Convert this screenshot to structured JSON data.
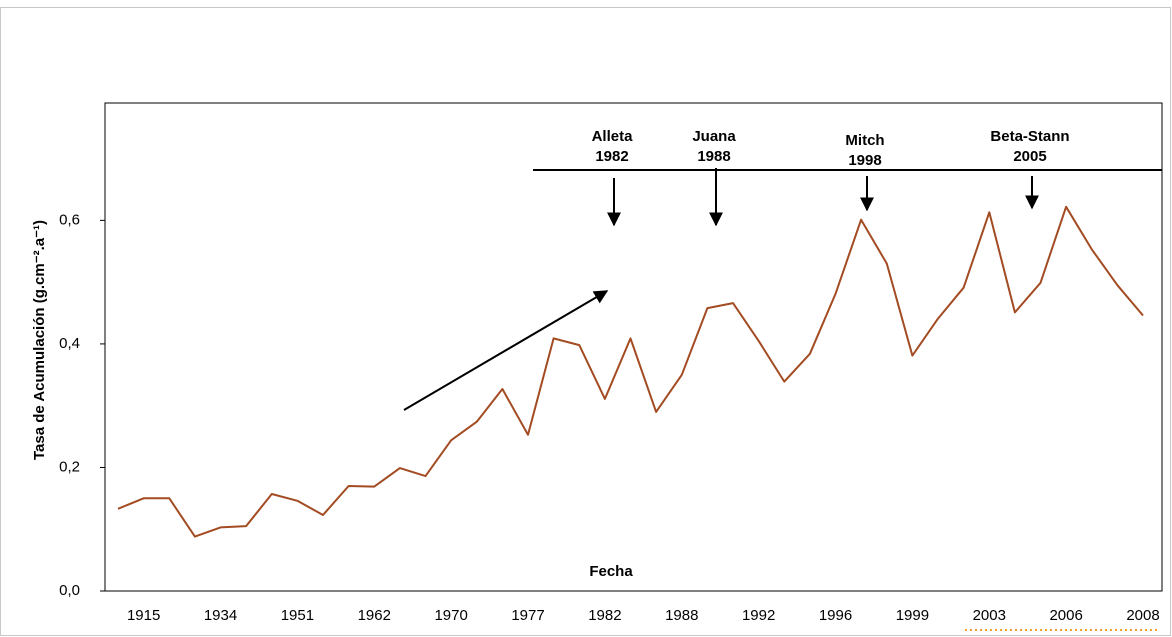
{
  "chart_data": {
    "type": "line",
    "x_label": "Fecha",
    "y_label": "Tasa de Acumulación (g.cm⁻².a⁻¹)",
    "categories": [
      null,
      "1915",
      null,
      null,
      "1934",
      null,
      null,
      "1951",
      null,
      null,
      "1962",
      null,
      null,
      "1970",
      null,
      null,
      "1977",
      null,
      null,
      "1982",
      null,
      null,
      "1988",
      null,
      null,
      "1992",
      null,
      null,
      "1996",
      null,
      null,
      "1999",
      null,
      null,
      "2003",
      null,
      null,
      "2006",
      null,
      null,
      "2008"
    ],
    "series": [
      {
        "color": "#a34b22",
        "values": [
          0.133,
          0.15,
          0.15,
          0.088,
          0.103,
          0.105,
          0.157,
          0.146,
          0.123,
          0.17,
          0.169,
          0.199,
          0.186,
          0.244,
          0.274,
          0.327,
          0.253,
          0.409,
          0.398,
          0.311,
          0.409,
          0.29,
          0.35,
          0.458,
          0.466,
          0.405,
          0.339,
          0.384,
          0.481,
          0.601,
          0.53,
          0.381,
          0.441,
          0.491,
          0.613,
          0.451,
          0.499,
          0.622,
          0.553,
          0.495,
          0.446
        ]
      }
    ],
    "ylim": [
      0,
      0.79
    ],
    "yticks": [
      {
        "value": 0,
        "label": "0,0"
      },
      {
        "value": 0.2,
        "label": "0,2"
      },
      {
        "value": 0.4,
        "label": "0,4"
      },
      {
        "value": 0.6,
        "label": "0,6"
      }
    ],
    "annotations": [
      {
        "text": [
          "Alleta",
          "1982"
        ]
      },
      {
        "text": [
          "Juana",
          "1988"
        ]
      },
      {
        "text": [
          "Mitch",
          "1998"
        ]
      },
      {
        "text": [
          "Beta-Stann",
          "2005"
        ]
      }
    ]
  }
}
